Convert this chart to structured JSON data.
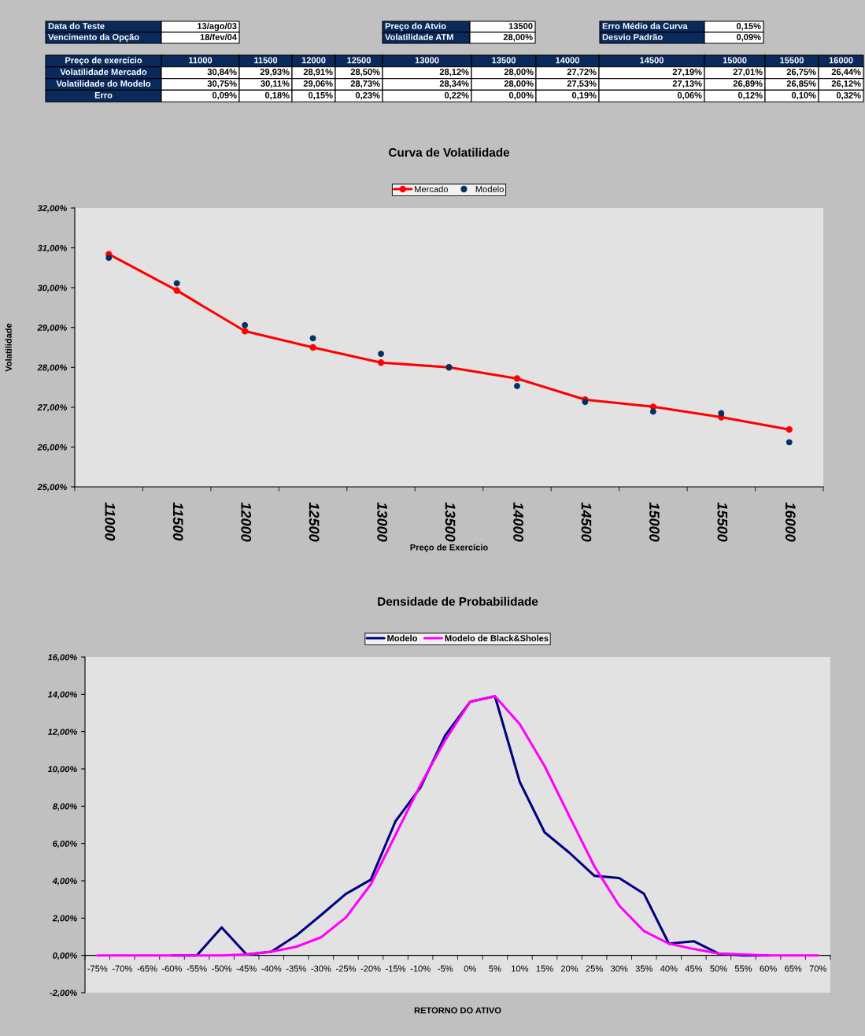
{
  "chart_data": [
    {
      "type": "other",
      "annotations": [
        "Data do Teste",
        "13/ago/03",
        "Vencimento da Opção",
        "18/fev/04",
        "Preço do Atvio",
        "13500",
        "Volatilidade ATM",
        "28,00%",
        "Erro Médio da Curva",
        "0,15%",
        "Desvio Padrão",
        "0,09%"
      ],
      "xlabel": "Preço de exercício",
      "categories": [
        "11000",
        "11500",
        "12000",
        "12500",
        "13000",
        "13500",
        "14000",
        "14500",
        "15000",
        "15500",
        "16000"
      ],
      "y_categories": [
        "Volatilidade Mercado",
        "Volatilidade do Modelo",
        "Erro"
      ],
      "cells": [
        [
          "30,84%",
          "29,93%",
          "28,91%",
          "28,50%",
          "28,12%",
          "28,00%",
          "27,72%",
          "27,19%",
          "27,01%",
          "26,75%",
          "26,44%"
        ],
        [
          "30,75%",
          "30,11%",
          "29,06%",
          "28,73%",
          "28,34%",
          "28,00%",
          "27,53%",
          "27,13%",
          "26,89%",
          "26,85%",
          "26,12%"
        ],
        [
          "0,09%",
          "0,18%",
          "0,15%",
          "0,23%",
          "0,22%",
          "0,00%",
          "0,19%",
          "0,06%",
          "0,12%",
          "0,10%",
          "0,32%"
        ]
      ]
    },
    {
      "type": "line",
      "title": "Curva de Volatilidade",
      "xlabel": "Preço de Exercício",
      "ylabel": "Volatilidade",
      "categories": [
        "11000",
        "11500",
        "12000",
        "12500",
        "13000",
        "13500",
        "14000",
        "14500",
        "15000",
        "15500",
        "16000"
      ],
      "series": [
        {
          "name": "Mercado",
          "type": "line",
          "marker": "circle",
          "color": "#ff0000",
          "values": [
            30.84,
            29.93,
            28.91,
            28.5,
            28.12,
            28.0,
            27.72,
            27.19,
            27.01,
            26.75,
            26.44
          ]
        },
        {
          "name": "Modelo",
          "type": "scatter",
          "marker": "circle",
          "color": "#003366",
          "values": [
            30.75,
            30.11,
            29.06,
            28.73,
            28.34,
            28.0,
            27.53,
            27.13,
            26.89,
            26.85,
            26.12
          ]
        }
      ],
      "ylim": [
        25,
        32
      ],
      "yticks": [
        {
          "value": 25,
          "label": "25,00%"
        },
        {
          "value": 26,
          "label": "26,00%"
        },
        {
          "value": 27,
          "label": "27,00%"
        },
        {
          "value": 28,
          "label": "28,00%"
        },
        {
          "value": 29,
          "label": "29,00%"
        },
        {
          "value": 30,
          "label": "30,00%"
        },
        {
          "value": 31,
          "label": "31,00%"
        },
        {
          "value": 32,
          "label": "32,00%"
        }
      ],
      "legend": "top",
      "grid": false
    },
    {
      "type": "line",
      "title": "Densidade de Probabilidade",
      "xlabel": "RETORNO DO ATIVO",
      "categories": [
        "-75%",
        "-70%",
        "-65%",
        "-60%",
        "-55%",
        "-50%",
        "-45%",
        "-40%",
        "-35%",
        "-30%",
        "-25%",
        "-20%",
        "-15%",
        "-10%",
        "-5%",
        "0%",
        "5%",
        "10%",
        "15%",
        "20%",
        "25%",
        "30%",
        "35%",
        "40%",
        "45%",
        "50%",
        "55%",
        "60%",
        "65%",
        "70%"
      ],
      "series": [
        {
          "name": "Modelo",
          "color": "#000080",
          "values": [
            null,
            null,
            null,
            0,
            0,
            1.5,
            0.05,
            0.2,
            1.06,
            2.16,
            3.3,
            4.06,
            7.2,
            9.0,
            11.8,
            13.6,
            13.9,
            9.3,
            6.6,
            5.5,
            4.27,
            4.15,
            3.3,
            0.63,
            0.76,
            0.1,
            0,
            0,
            null,
            null
          ]
        },
        {
          "name": "Modelo de Black&Sholes",
          "color": "#ff00ff",
          "values": [
            0,
            0,
            0,
            0,
            0,
            0,
            0.05,
            0.2,
            0.46,
            0.97,
            2.03,
            3.8,
            6.47,
            9.14,
            11.55,
            13.6,
            13.9,
            12.4,
            10.15,
            7.45,
            4.78,
            2.67,
            1.3,
            0.63,
            0.34,
            0.1,
            0.05,
            0,
            0,
            0
          ]
        }
      ],
      "ylim": [
        -2,
        16
      ],
      "yticks": [
        {
          "value": -2,
          "label": "-2,00%"
        },
        {
          "value": 0,
          "label": "0,00%"
        },
        {
          "value": 2,
          "label": "2,00%"
        },
        {
          "value": 4,
          "label": "4,00%"
        },
        {
          "value": 6,
          "label": "6,00%"
        },
        {
          "value": 8,
          "label": "8,00%"
        },
        {
          "value": 10,
          "label": "10,00%"
        },
        {
          "value": 12,
          "label": "12,00%"
        },
        {
          "value": 14,
          "label": "14,00%"
        },
        {
          "value": 16,
          "label": "16,00%"
        }
      ],
      "marker": "none",
      "legend": "top",
      "grid": false
    }
  ]
}
